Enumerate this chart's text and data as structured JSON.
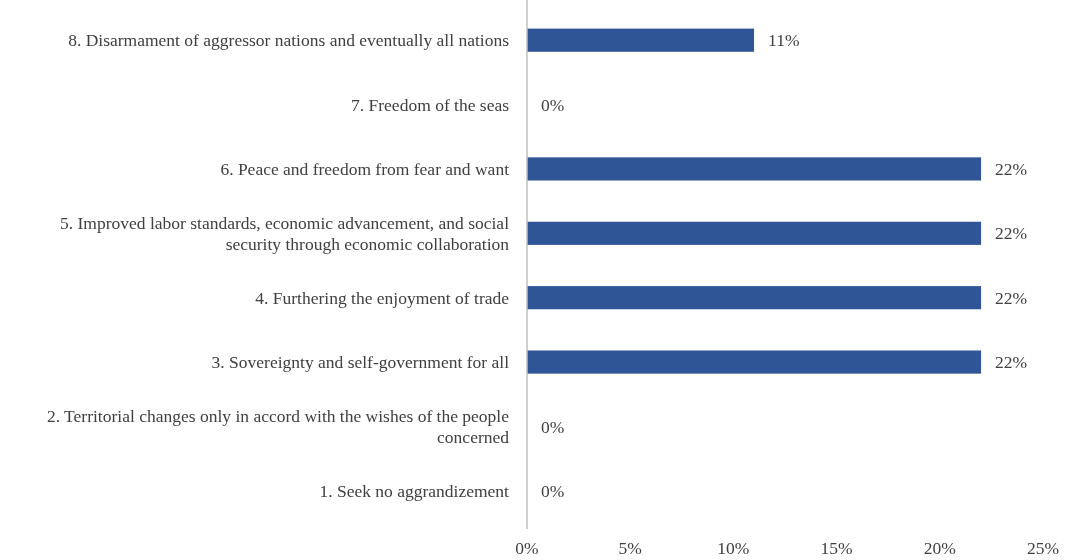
{
  "chart_data": {
    "type": "bar",
    "orientation": "horizontal",
    "categories": [
      "8. Disarmament of aggressor nations and eventually all nations",
      "7. Freedom of the seas",
      "6. Peace and freedom from fear and want",
      "5. Improved labor standards, economic advancement, and social security through economic collaboration",
      "4. Furthering the enjoyment of trade",
      "3. Sovereignty and self-government for all",
      "2. Territorial changes only in accord with the wishes of the people concerned",
      "1. Seek no aggrandizement"
    ],
    "values": [
      11,
      0,
      22,
      22,
      22,
      22,
      0,
      0
    ],
    "color": "#2f5597",
    "value_labels": [
      "11%",
      "0%",
      "22%",
      "22%",
      "22%",
      "22%",
      "0%",
      "0%"
    ],
    "xlim": [
      0,
      25
    ],
    "xticks": [
      {
        "value": 0,
        "label": "0%"
      },
      {
        "value": 5,
        "label": "5%"
      },
      {
        "value": 10,
        "label": "10%"
      },
      {
        "value": 15,
        "label": "15%"
      },
      {
        "value": 20,
        "label": "20%"
      },
      {
        "value": 25,
        "label": "25%"
      }
    ],
    "grid": false
  }
}
